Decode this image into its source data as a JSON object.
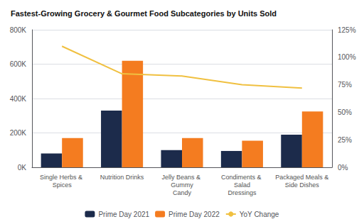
{
  "chart_data": {
    "type": "bar",
    "title": "Fastest-Growing Grocery & Gourmet Food Subcategories by Units Sold",
    "categories": [
      "Single Herbs & Spices",
      "Nutrition Drinks",
      "Jelly Beans & Gummy\nCandy",
      "Condiments & Salad\nDressings",
      "Packaged Meals &\nSide Dishes"
    ],
    "series": [
      {
        "name": "Prime Day 2021",
        "type": "bar",
        "color": "#1c2b4b",
        "values": [
          80000,
          330000,
          100000,
          95000,
          190000
        ]
      },
      {
        "name": "Prime Day 2022",
        "type": "bar",
        "color": "#f47c20",
        "values": [
          170000,
          620000,
          170000,
          155000,
          325000
        ]
      },
      {
        "name": "YoY Change",
        "type": "line",
        "axis": "y2",
        "color": "#f0c040",
        "values": [
          1.1,
          0.85,
          0.83,
          0.75,
          0.72
        ]
      }
    ],
    "ylim": [
      0,
      800000
    ],
    "yticks": [
      {
        "value": 0,
        "label": "0K"
      },
      {
        "value": 200000,
        "label": "200K"
      },
      {
        "value": 400000,
        "label": "400K"
      },
      {
        "value": 600000,
        "label": "600K"
      },
      {
        "value": 800000,
        "label": "800K"
      }
    ],
    "y2lim": [
      0,
      1.25
    ],
    "y2ticks": [
      {
        "value": 0.0,
        "label": "0%"
      },
      {
        "value": 0.25,
        "label": "25%"
      },
      {
        "value": 0.5,
        "label": "50%"
      },
      {
        "value": 0.75,
        "label": "75%"
      },
      {
        "value": 1.0,
        "label": "100%"
      },
      {
        "value": 1.25,
        "label": "125%"
      }
    ],
    "grid": true,
    "legend": "bottom"
  }
}
